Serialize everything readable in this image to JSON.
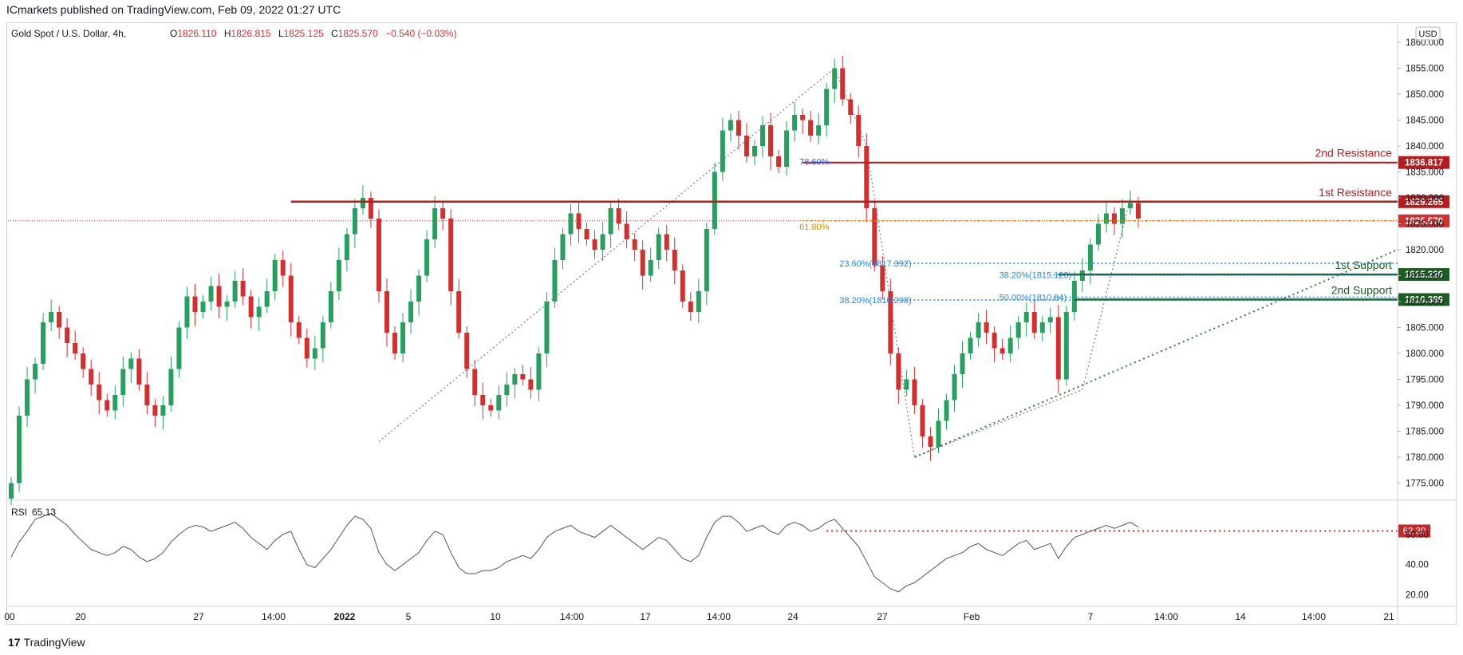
{
  "header": {
    "published": "ICmarkets published on TradingView.com, Feb 09, 2022 01:27 UTC"
  },
  "footer": {
    "logo_mark": "17",
    "brand": "TradingView"
  },
  "chart_data": {
    "type": "candlestick",
    "symbol": "Gold Spot / U.S. Dollar, 4h,",
    "ohlc_label": {
      "o_key": "O",
      "o": "1826.110",
      "h_key": "H",
      "h": "1826.815",
      "l_key": "L",
      "l": "1825.125",
      "c_key": "C",
      "c": "1825.570",
      "change": "−0.540 (−0.03%)"
    },
    "currency": "USD",
    "y_axis": {
      "ylim": [
        1772,
        1862
      ],
      "ticks": [
        "1775.000",
        "1780.000",
        "1785.000",
        "1790.000",
        "1795.000",
        "1800.000",
        "1805.000",
        "1810.000",
        "1815.000",
        "1820.000",
        "1825.000",
        "1830.000",
        "1835.000",
        "1840.000",
        "1845.000",
        "1850.000",
        "1855.000",
        "1860.000"
      ]
    },
    "x_axis": {
      "ticks": [
        "00",
        "20",
        "27",
        "14:00",
        "2022",
        "5",
        "10",
        "14:00",
        "17",
        "14:00",
        "24",
        "27",
        "Feb",
        "7",
        "14:00",
        "14",
        "14:00",
        "21"
      ]
    },
    "close_series": [
      1775,
      1788,
      1795,
      1798,
      1806,
      1808,
      1805,
      1802,
      1800,
      1797,
      1794,
      1791,
      1789,
      1792,
      1797,
      1799,
      1794,
      1790,
      1788,
      1790,
      1797,
      1805,
      1811,
      1808,
      1810,
      1813,
      1809,
      1810,
      1814,
      1811,
      1807,
      1809,
      1812,
      1818,
      1815,
      1806,
      1803,
      1799,
      1801,
      1806,
      1812,
      1818,
      1823,
      1828,
      1830,
      1826,
      1812,
      1804,
      1800,
      1806,
      1810,
      1815,
      1822,
      1828,
      1826,
      1812,
      1804,
      1797,
      1792,
      1790,
      1789,
      1792,
      1794,
      1796,
      1795,
      1793,
      1800,
      1810,
      1818,
      1823,
      1827,
      1824,
      1822,
      1820,
      1823,
      1828,
      1825,
      1822,
      1820,
      1815,
      1818,
      1823,
      1820,
      1816,
      1810,
      1808,
      1812,
      1824,
      1835,
      1843,
      1845,
      1842,
      1838,
      1840,
      1844,
      1838,
      1836,
      1843,
      1846,
      1845,
      1842,
      1844,
      1851,
      1855,
      1849,
      1846,
      1840,
      1828,
      1817,
      1812,
      1800,
      1793,
      1795,
      1790,
      1784,
      1782,
      1787,
      1791,
      1796,
      1800,
      1803,
      1806,
      1804,
      1801,
      1800,
      1803,
      1806,
      1808,
      1804,
      1806,
      1807,
      1795,
      1808,
      1814,
      1816,
      1821,
      1825,
      1827,
      1825,
      1828,
      1829,
      1826
    ],
    "levels": [
      {
        "label": "2nd Resistance",
        "value": "1836.817",
        "color": "#b71c1c"
      },
      {
        "label": "1st Resistance",
        "value": "1829.265",
        "color": "#b71c1c"
      },
      {
        "label": "",
        "value": "1825.570",
        "color": "#d32f2f"
      },
      {
        "label": "1st Support",
        "value": "1815.220",
        "color": "#1b5e20"
      },
      {
        "label": "2nd Support",
        "value": "1810.389",
        "color": "#1b5e20"
      }
    ],
    "fib_labels": [
      {
        "text": "78.60%",
        "color": "#2962ff"
      },
      {
        "text": "61.80%",
        "color": "#e68a00"
      },
      {
        "text": "23.60%(1817.392)",
        "color": "#1e88e5"
      },
      {
        "text": "38.20%(1810.298)",
        "color": "#1e88e5"
      },
      {
        "text": "38.20%(1815.123)",
        "color": "#1e88e5"
      },
      {
        "text": "50.00%(1810.84)",
        "color": "#1e88e5"
      }
    ],
    "rsi": {
      "label": "RSI",
      "value": "65.13",
      "level_label": "62.30",
      "ticks": [
        "60.00",
        "40.00",
        "20.00"
      ],
      "ylim": [
        15,
        80
      ],
      "series": [
        45,
        55,
        62,
        70,
        72,
        74,
        70,
        66,
        60,
        55,
        50,
        48,
        46,
        48,
        52,
        50,
        45,
        42,
        44,
        48,
        55,
        60,
        64,
        66,
        65,
        62,
        64,
        66,
        68,
        64,
        58,
        54,
        50,
        56,
        60,
        62,
        50,
        40,
        38,
        44,
        50,
        58,
        66,
        72,
        70,
        64,
        48,
        40,
        36,
        40,
        44,
        48,
        56,
        62,
        60,
        48,
        38,
        34,
        34,
        36,
        36,
        38,
        42,
        44,
        46,
        44,
        50,
        58,
        62,
        64,
        66,
        62,
        60,
        58,
        62,
        66,
        62,
        58,
        54,
        50,
        54,
        58,
        56,
        50,
        44,
        42,
        46,
        58,
        68,
        72,
        72,
        68,
        62,
        64,
        66,
        62,
        60,
        66,
        68,
        66,
        62,
        64,
        68,
        70,
        64,
        58,
        52,
        42,
        32,
        28,
        24,
        22,
        26,
        28,
        32,
        36,
        40,
        44,
        46,
        48,
        52,
        54,
        50,
        48,
        46,
        50,
        54,
        56,
        50,
        52,
        54,
        44,
        52,
        58,
        60,
        62,
        64,
        66,
        64,
        66,
        68,
        65
      ]
    },
    "colors": {
      "up": "#26a05c",
      "down": "#d32f2f"
    }
  }
}
